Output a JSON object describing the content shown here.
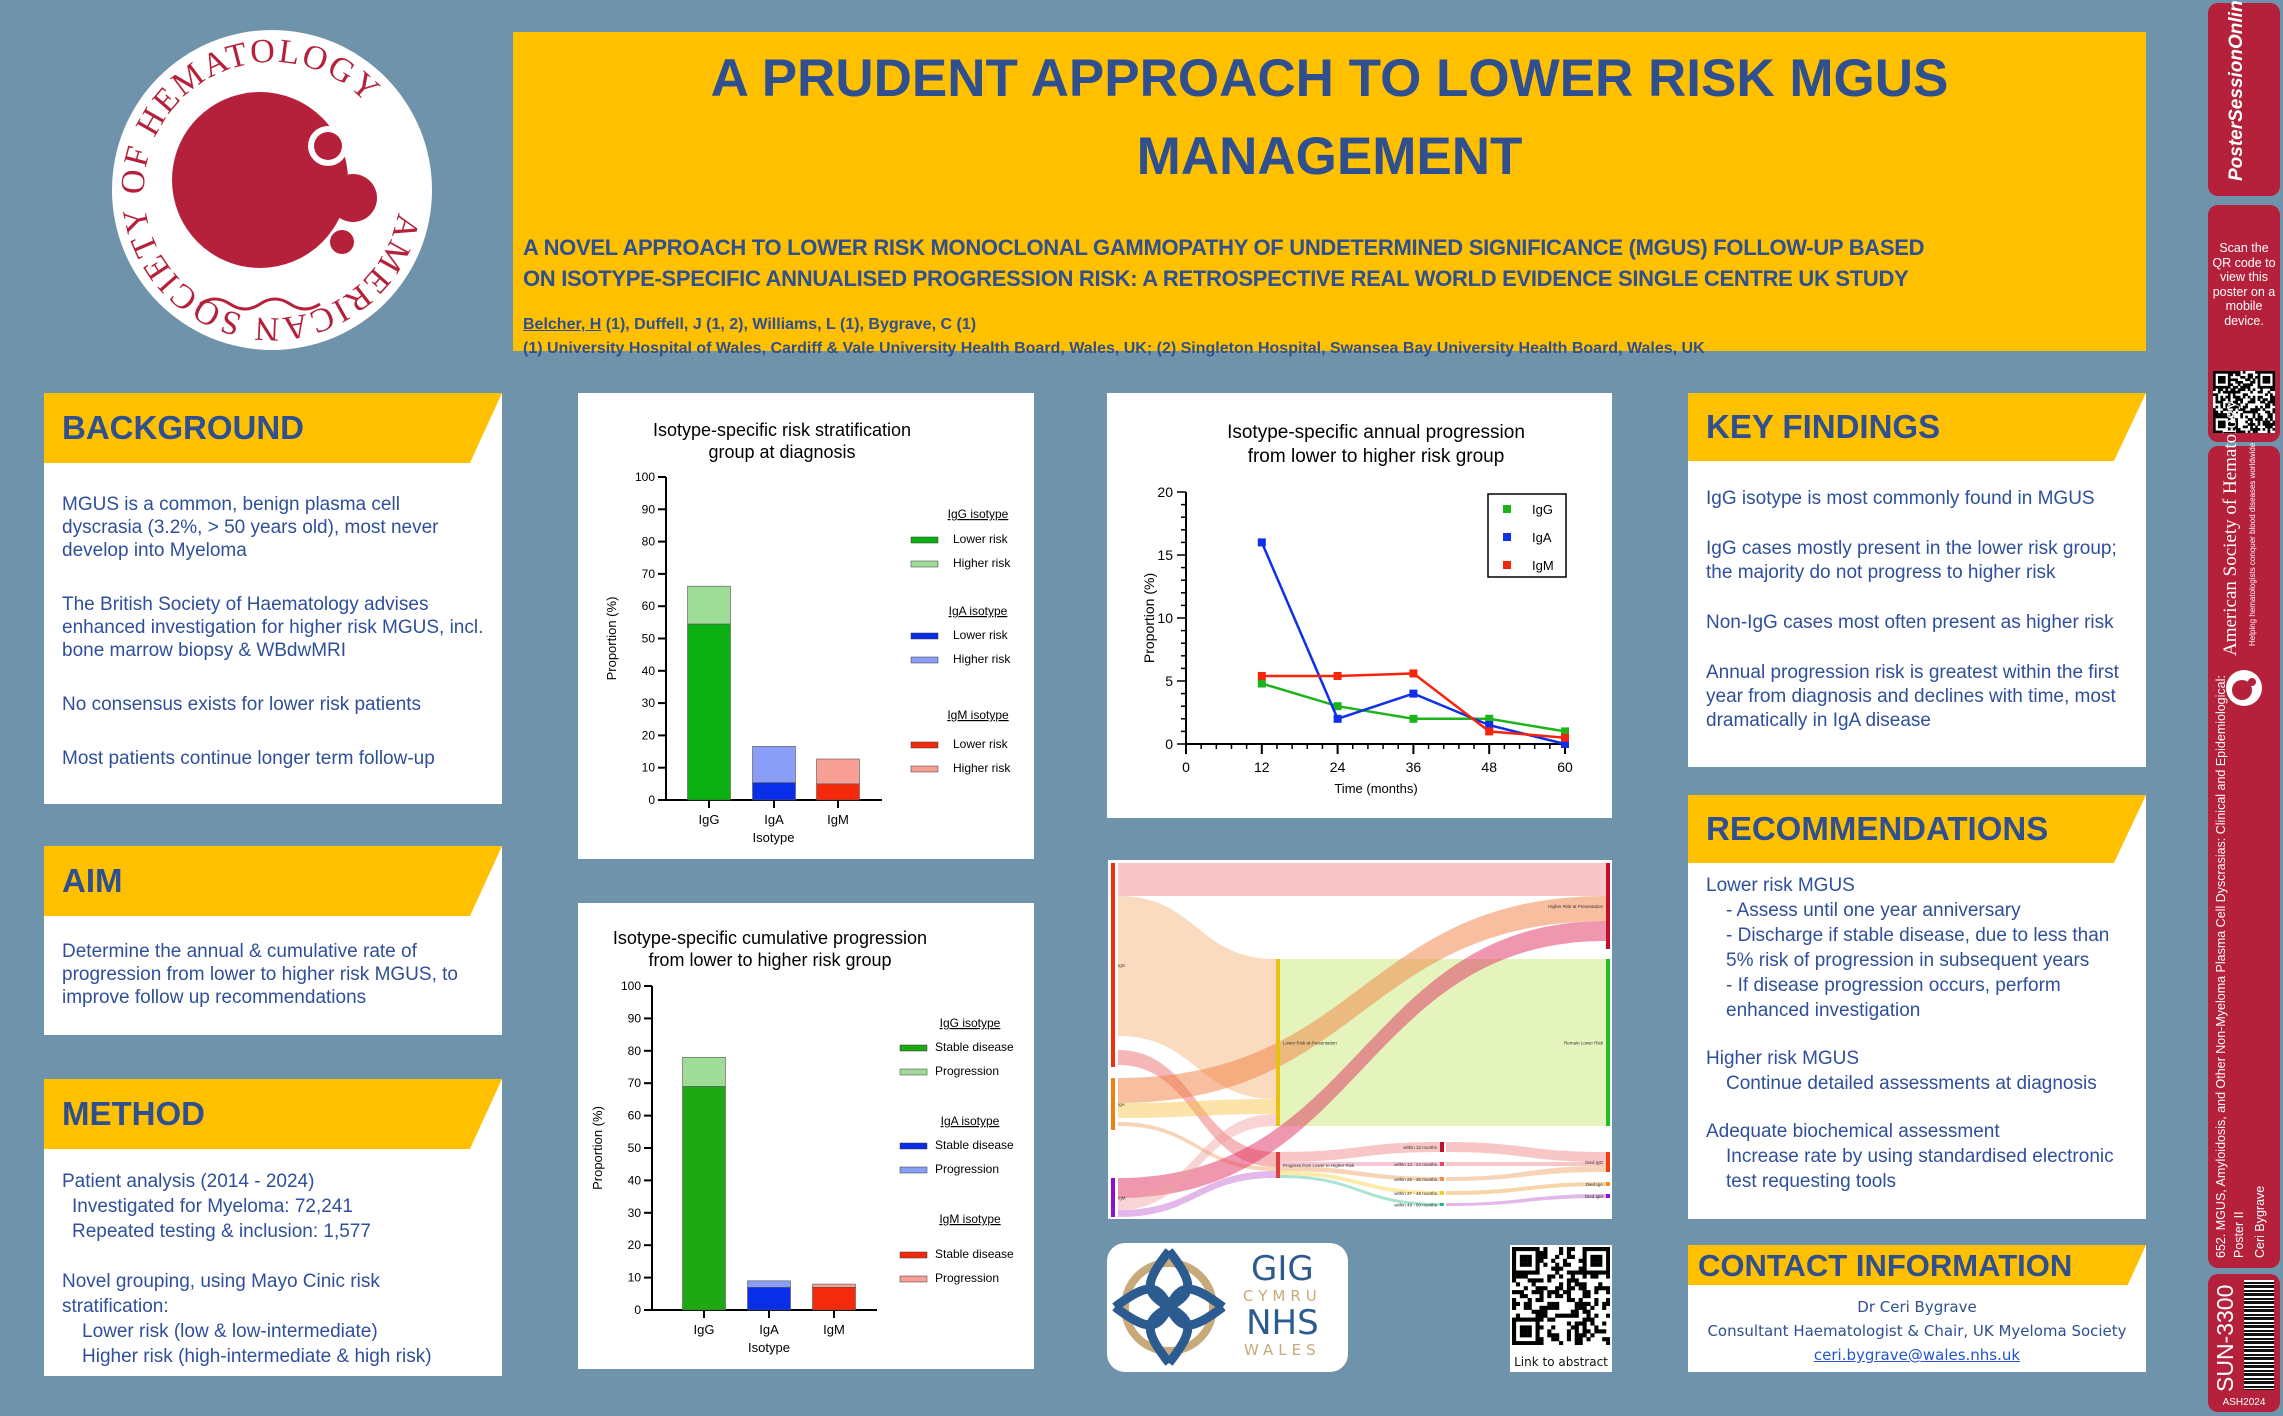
{
  "logos": {
    "ash": "AMERICAN SOCIETY OF HEMATOLOGY",
    "nhs": [
      "GIG",
      "CYMRU",
      "NHS",
      "WALES"
    ],
    "poster_session": "PosterSessionOnline.com"
  },
  "header": {
    "title_line1": "A PRUDENT APPROACH TO LOWER RISK MGUS",
    "title_line2": "MANAGEMENT",
    "subtitle_line1": "A NOVEL APPROACH TO LOWER RISK MONOCLONAL GAMMOPATHY OF UNDETERMINED SIGNIFICANCE (MGUS) FOLLOW-UP BASED",
    "subtitle_line2": "ON ISOTYPE-SPECIFIC ANNUALISED PROGRESSION RISK: A RETROSPECTIVE REAL WORLD EVIDENCE SINGLE CENTRE UK STUDY",
    "presenting_author": "Belcher, H",
    "authors_rest": " (1), Duffell, J (1, 2), Williams, L (1), Bygrave, C (1)",
    "affiliations": "(1) University Hospital of Wales, Cardiff & Vale University Health Board, Wales, UK; (2) Singleton Hospital, Swansea Bay University Health Board, Wales, UK"
  },
  "background": {
    "heading": "BACKGROUND",
    "paragraphs": [
      "MGUS is a common, benign plasma cell dyscrasia (3.2%, > 50 years old), most never develop into Myeloma",
      "The British Society of Haematology advises enhanced investigation for higher risk MGUS, incl. bone marrow biopsy & WBdwMRI",
      "No consensus exists for lower risk patients",
      "Most patients continue longer term follow-up"
    ]
  },
  "aim": {
    "heading": "AIM",
    "text": "Determine the annual & cumulative rate of progression from lower to higher risk MGUS, to improve follow up recommendations"
  },
  "method": {
    "heading": "METHOD",
    "lines": [
      "Patient analysis (2014 - 2024)",
      "Investigated for Myeloma: 72,241",
      "Repeated testing & inclusion: 1,577",
      "Novel grouping, using Mayo Cinic risk stratification:",
      "Lower risk (low & low-intermediate)",
      "Higher risk (high-intermediate & high risk)"
    ]
  },
  "key_findings": {
    "heading": "KEY FINDINGS",
    "paragraphs": [
      "IgG isotype is most commonly found in MGUS",
      "IgG cases mostly present in the lower risk group; the majority do not progress to higher risk",
      "Non-IgG cases most often present as higher risk",
      "Annual progression risk is greatest within the first year from diagnosis and declines with time, most dramatically in IgA disease"
    ]
  },
  "recommendations": {
    "heading": "RECOMMENDATIONS",
    "groups": [
      {
        "title": "Lower risk MGUS",
        "items": [
          "- Assess until one year anniversary",
          "- Discharge if stable disease, due to less than 5% risk of progression in subsequent years",
          "- If disease progression occurs, perform enhanced investigation"
        ]
      },
      {
        "title": "Higher risk MGUS",
        "items": [
          "Continue detailed assessments at diagnosis"
        ]
      },
      {
        "title": "Adequate biochemical assessment",
        "items": [
          "Increase rate by using standardised electronic test requesting tools"
        ]
      }
    ]
  },
  "contact": {
    "heading": "CONTACT INFORMATION",
    "name": "Dr Ceri Bygrave",
    "role": "Consultant Haematologist & Chair, UK Myeloma Society",
    "email": "ceri.bygrave@wales.nhs.uk"
  },
  "qr": {
    "caption": "Link to abstract"
  },
  "strip": {
    "scan_text": "Scan the QR code to view this poster on a mobile device.",
    "ash_name": "American Society of Hematology",
    "ash_tagline": "Helping hematologists conquer blood diseases worldwide",
    "session": "652. MGUS, Amyloidosis, and Other Non-Myeloma Plasma Cell Dyscrasias: Clinical and Epidemiological:",
    "poster": "Poster II",
    "presenter": "Ceri Bygrave",
    "code": "SUN-3300",
    "meeting": "ASH2024"
  },
  "colors": {
    "background": "#6f93ab",
    "accent_yellow": "#ffc000",
    "navy": "#2f4f8f",
    "ash_red": "#b5203a"
  },
  "chart_data": [
    {
      "type": "bar",
      "stacked": true,
      "title": [
        "Isotype-specific risk stratification",
        "group at diagnosis"
      ],
      "xlabel": "Isotype",
      "ylabel": "Proportion (%)",
      "ylim": [
        0,
        100
      ],
      "yticks": [
        0,
        10,
        20,
        30,
        40,
        50,
        60,
        70,
        80,
        90,
        100
      ],
      "categories": [
        "IgG",
        "IgA",
        "IgM"
      ],
      "series": [
        {
          "name": "Lower risk",
          "values": [
            54.5,
            5.4,
            5.0
          ]
        },
        {
          "name": "Higher risk",
          "values": [
            11.7,
            11.2,
            7.7
          ]
        }
      ],
      "legend": [
        {
          "heading": "IgG isotype",
          "items": [
            "Lower risk",
            "Higher risk"
          ],
          "colors": [
            "#0bb012",
            "#9fdc98"
          ]
        },
        {
          "heading": "IgA isotype",
          "items": [
            "Lower risk",
            "Higher risk"
          ],
          "colors": [
            "#0a2ee8",
            "#8a9ef8"
          ]
        },
        {
          "heading": "IgM isotype",
          "items": [
            "Lower risk",
            "Higher risk"
          ],
          "colors": [
            "#f52a0c",
            "#f9a096"
          ]
        }
      ],
      "legend_placement": "right"
    },
    {
      "type": "line",
      "title": [
        "Isotype-specific annual progression",
        "from lower to higher risk group"
      ],
      "xlabel": "Time (months)",
      "ylabel": "Proportion (%)",
      "xlim": [
        0,
        60
      ],
      "ylim": [
        0,
        20
      ],
      "xticks": [
        0,
        12,
        24,
        36,
        48,
        60
      ],
      "yticks": [
        0,
        5,
        10,
        15,
        20
      ],
      "x": [
        12,
        24,
        36,
        48,
        60
      ],
      "series": [
        {
          "name": "IgG",
          "color": "#1db31d",
          "values": [
            4.8,
            3.0,
            2.0,
            2.0,
            1.0
          ]
        },
        {
          "name": "IgA",
          "color": "#0f2fe8",
          "values": [
            16.0,
            2.0,
            4.0,
            1.5,
            0.0
          ]
        },
        {
          "name": "IgM",
          "color": "#f5250c",
          "values": [
            5.4,
            5.4,
            5.6,
            1.0,
            0.5
          ]
        }
      ],
      "legend_placement": "top-right"
    },
    {
      "type": "bar",
      "stacked": true,
      "title": [
        "Isotype-specific cumulative progression",
        "from lower to higher risk group"
      ],
      "xlabel": "Isotype",
      "ylabel": "Proportion (%)",
      "ylim": [
        0,
        100
      ],
      "yticks": [
        0,
        10,
        20,
        30,
        40,
        50,
        60,
        70,
        80,
        90,
        100
      ],
      "categories": [
        "IgG",
        "IgA",
        "IgM"
      ],
      "series": [
        {
          "name": "Stable disease",
          "values": [
            69,
            7,
            7
          ]
        },
        {
          "name": "Progression",
          "values": [
            9,
            2,
            1
          ]
        }
      ],
      "legend": [
        {
          "heading": "IgG isotype",
          "items": [
            "Stable disease",
            "Progression"
          ],
          "colors": [
            "#1ea812",
            "#9fdc98"
          ]
        },
        {
          "heading": "IgA isotype",
          "items": [
            "Stable disease",
            "Progression"
          ],
          "colors": [
            "#0a2ee8",
            "#8a9ef8"
          ]
        },
        {
          "heading": "IgM isotype",
          "items": [
            "Stable disease",
            "Progression"
          ],
          "colors": [
            "#f52a0c",
            "#f9a096"
          ]
        }
      ],
      "legend_placement": "right"
    }
  ],
  "sankey": {
    "nodes": [
      "IgG",
      "IgA",
      "IgM",
      "Lower Risk at Presentation",
      "Progress from Lower to Higher Risk",
      "Higher Risk at Presentation",
      "Remain Lower Risk",
      "within 12 months",
      "within 13 - 24 months",
      "within 25 - 36 months",
      "within 37 - 48 months",
      "within 49 - 60 months",
      "Died IgG",
      "Died IgA",
      "Died IgM"
    ]
  }
}
